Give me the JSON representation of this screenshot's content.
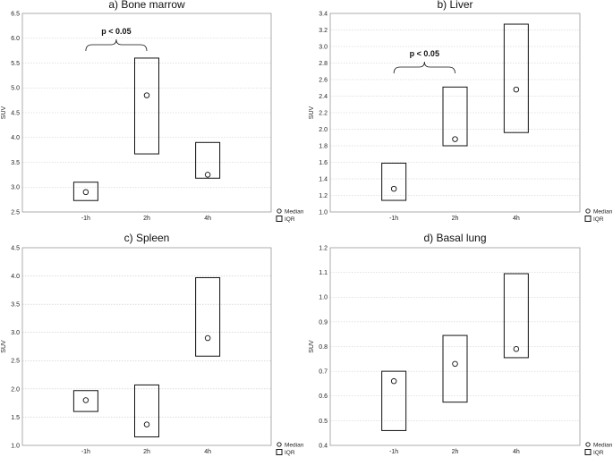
{
  "chart_data": [
    {
      "type": "box",
      "title": "a) Bone marrow",
      "ylabel": "SUV",
      "categories": [
        "-1h",
        "2h",
        "4h"
      ],
      "ylim": [
        2.5,
        6.5
      ],
      "yticks": [
        "2.5",
        "3.0",
        "3.5",
        "4.0",
        "4.5",
        "5.0",
        "5.5",
        "6.0",
        "6.5"
      ],
      "series": [
        {
          "name": "Median",
          "values": [
            2.9,
            4.85,
            3.25
          ]
        },
        {
          "name": "IQR",
          "q1": [
            2.73,
            3.67,
            3.18
          ],
          "q3": [
            3.1,
            5.6,
            3.9
          ]
        }
      ],
      "annotation": {
        "text": "p < 0.05",
        "from": "-1h",
        "to": "2h"
      },
      "legend": {
        "median": "Median",
        "iqr": "IQR"
      }
    },
    {
      "type": "box",
      "title": "b) Liver",
      "ylabel": "SUV",
      "categories": [
        "-1h",
        "2h",
        "4h"
      ],
      "ylim": [
        1.0,
        3.4
      ],
      "yticks": [
        "1.0",
        "1.2",
        "1.4",
        "1.6",
        "1.8",
        "2.0",
        "2.2",
        "2.4",
        "2.6",
        "2.8",
        "3.0",
        "3.2",
        "3.4"
      ],
      "series": [
        {
          "name": "Median",
          "values": [
            1.28,
            1.88,
            2.48
          ]
        },
        {
          "name": "IQR",
          "q1": [
            1.14,
            1.8,
            1.96
          ],
          "q3": [
            1.59,
            2.51,
            3.27
          ]
        }
      ],
      "annotation": {
        "text": "p < 0.05",
        "from": "-1h",
        "to": "2h"
      },
      "legend": {
        "median": "Median",
        "iqr": "IQR"
      }
    },
    {
      "type": "box",
      "title": "c) Spleen",
      "ylabel": "SUV",
      "categories": [
        "-1h",
        "2h",
        "4h"
      ],
      "ylim": [
        1.0,
        4.5
      ],
      "yticks": [
        "1.0",
        "1.5",
        "2.0",
        "2.5",
        "3.0",
        "3.5",
        "4.0",
        "4.5"
      ],
      "series": [
        {
          "name": "Median",
          "values": [
            1.8,
            1.37,
            2.9
          ]
        },
        {
          "name": "IQR",
          "q1": [
            1.6,
            1.15,
            2.58
          ],
          "q3": [
            1.97,
            2.07,
            3.97
          ]
        }
      ],
      "annotation": null,
      "legend": {
        "median": "Median",
        "iqr": "IQR"
      }
    },
    {
      "type": "box",
      "title": "d) Basal lung",
      "ylabel": "SUV",
      "categories": [
        "-1h",
        "2h",
        "4h"
      ],
      "ylim": [
        0.4,
        1.2
      ],
      "yticks": [
        "0.4",
        "0.5",
        "0.6",
        "0.7",
        "0.8",
        "0.9",
        "1.0",
        "1.1",
        "1.2"
      ],
      "series": [
        {
          "name": "Median",
          "values": [
            0.66,
            0.73,
            0.79
          ]
        },
        {
          "name": "IQR",
          "q1": [
            0.46,
            0.575,
            0.755
          ],
          "q3": [
            0.7,
            0.845,
            1.095
          ]
        }
      ],
      "annotation": null,
      "legend": {
        "median": "Median",
        "iqr": "IQR"
      }
    }
  ]
}
